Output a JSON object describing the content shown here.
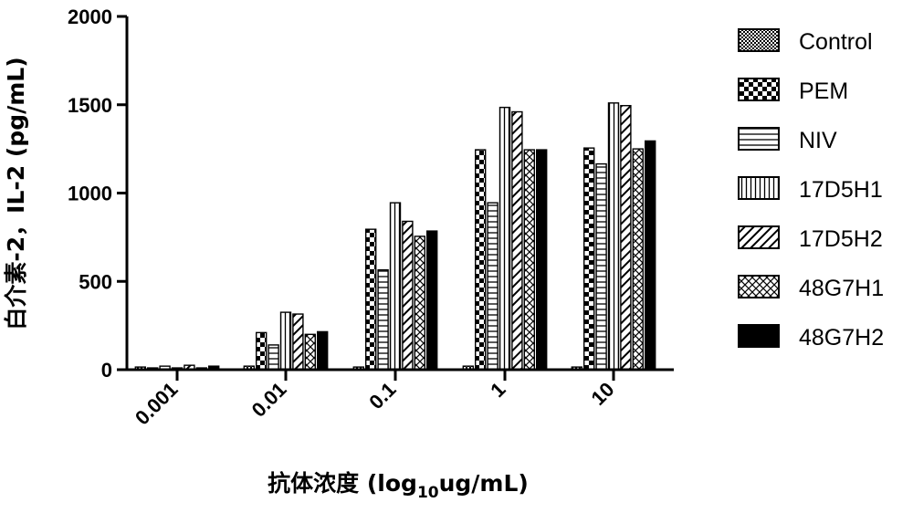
{
  "chart_data": {
    "type": "bar",
    "ylabel": "白介素-2，IL-2 (pg/mL)",
    "xlabel_main": "抗体浓度 (log",
    "xlabel_sub": "10",
    "xlabel_tail": "ug/mL)",
    "ylim": [
      0,
      2000
    ],
    "yticks": [
      "0",
      "500",
      "1000",
      "1500",
      "2000"
    ],
    "ytick_values": [
      0,
      500,
      1000,
      1500,
      2000
    ],
    "categories": [
      "0.001",
      "0.01",
      "0.1",
      "1",
      "10"
    ],
    "series": [
      {
        "name": "Control",
        "pattern": "dots",
        "values": [
          15,
          20,
          15,
          20,
          15
        ]
      },
      {
        "name": "PEM",
        "pattern": "checker",
        "values": [
          10,
          210,
          795,
          1245,
          1255
        ]
      },
      {
        "name": "NIV",
        "pattern": "hlines",
        "values": [
          20,
          140,
          565,
          945,
          1165
        ]
      },
      {
        "name": "17D5H1",
        "pattern": "vlines",
        "values": [
          10,
          325,
          945,
          1485,
          1510
        ]
      },
      {
        "name": "17D5H2",
        "pattern": "diag",
        "values": [
          25,
          315,
          840,
          1460,
          1495
        ]
      },
      {
        "name": "48G7H1",
        "pattern": "crosshatch",
        "values": [
          10,
          200,
          755,
          1245,
          1250
        ]
      },
      {
        "name": "48G7H2",
        "pattern": "solid",
        "values": [
          20,
          215,
          785,
          1245,
          1295
        ]
      }
    ],
    "legend_position": "right",
    "grid": false
  }
}
